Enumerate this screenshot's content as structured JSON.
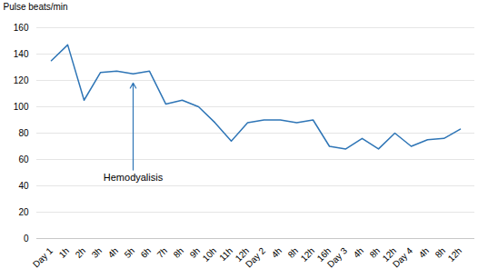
{
  "chart_data": {
    "type": "line",
    "categories": [
      "Day 1",
      "1h",
      "2h",
      "3h",
      "4h",
      "5h",
      "6h",
      "7h",
      "8h",
      "9h",
      "10h",
      "11h",
      "12h",
      "Day 2",
      "4h",
      "8h",
      "12h",
      "16h",
      "Day 3",
      "4h",
      "8h",
      "12h",
      "Day 4",
      "4h",
      "8h",
      "12h"
    ],
    "values": [
      135,
      147,
      105,
      126,
      127,
      125,
      127,
      102,
      105,
      100,
      88,
      74,
      88,
      90,
      90,
      88,
      90,
      70,
      68,
      76,
      68,
      80,
      70,
      75,
      76,
      83
    ],
    "ylabel": "Pulse beats/min",
    "color": "#2e75b6",
    "ylim": [
      0,
      160
    ],
    "yticks": [
      0,
      20,
      40,
      60,
      80,
      100,
      120,
      140,
      160
    ],
    "grid": true,
    "annotations": [
      {
        "text": "Hemodyalisis",
        "category": "5h",
        "y_start": 52,
        "y_end": 118
      }
    ]
  }
}
